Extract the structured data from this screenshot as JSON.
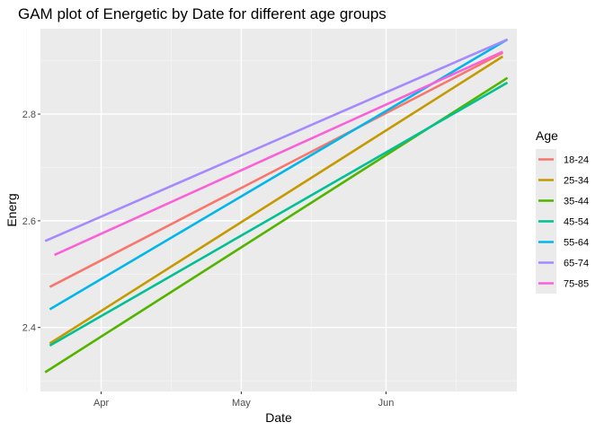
{
  "chart_data": {
    "type": "line",
    "title": "GAM plot of Energetic by Date for different age groups",
    "xlabel": "Date",
    "ylabel": "Energ",
    "x_range": [
      "2023-03-19",
      "2023-06-29"
    ],
    "ylim": [
      2.28,
      2.96
    ],
    "x_ticks": [
      {
        "date": "2023-04-01",
        "label": "Apr"
      },
      {
        "date": "2023-05-01",
        "label": "May"
      },
      {
        "date": "2023-06-01",
        "label": "Jun"
      }
    ],
    "x_minor": [
      "2023-03-16",
      "2023-04-16",
      "2023-05-16",
      "2023-06-16"
    ],
    "y_ticks": [
      2.4,
      2.6,
      2.8
    ],
    "y_tick_labels": [
      "2.4",
      "2.6",
      "2.8"
    ],
    "y_minor": [
      2.3,
      2.5,
      2.7,
      2.9
    ],
    "legend_title": "Age",
    "legend_position": "right",
    "grid": true,
    "background": "#ebebeb",
    "series": [
      {
        "name": "18-24",
        "color": "#F8766D",
        "x": [
          "2023-03-21",
          "2023-06-26"
        ],
        "y": [
          2.476,
          2.915
        ]
      },
      {
        "name": "25-34",
        "color": "#C49A00",
        "x": [
          "2023-03-21",
          "2023-06-26"
        ],
        "y": [
          2.37,
          2.908
        ]
      },
      {
        "name": "35-44",
        "color": "#53B400",
        "x": [
          "2023-03-20",
          "2023-06-27"
        ],
        "y": [
          2.316,
          2.868
        ]
      },
      {
        "name": "45-54",
        "color": "#00C094",
        "x": [
          "2023-03-21",
          "2023-06-27"
        ],
        "y": [
          2.366,
          2.859
        ]
      },
      {
        "name": "55-64",
        "color": "#00B6EB",
        "x": [
          "2023-03-21",
          "2023-06-27"
        ],
        "y": [
          2.434,
          2.94
        ]
      },
      {
        "name": "65-74",
        "color": "#A58AFF",
        "x": [
          "2023-03-20",
          "2023-06-27"
        ],
        "y": [
          2.562,
          2.94
        ]
      },
      {
        "name": "75-85",
        "color": "#FB61D7",
        "x": [
          "2023-03-22",
          "2023-06-26"
        ],
        "y": [
          2.536,
          2.917
        ]
      }
    ]
  }
}
